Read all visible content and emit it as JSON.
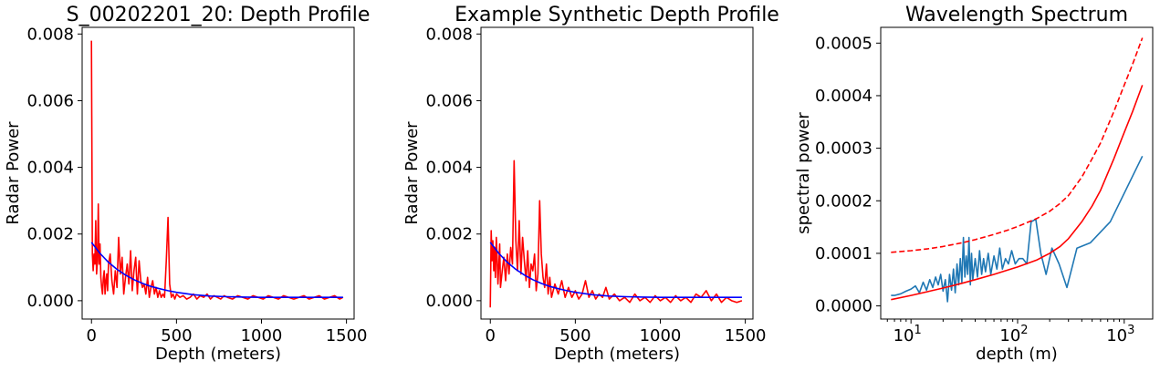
{
  "chart_data": [
    {
      "type": "line",
      "title": "S_00202201_20: Depth Profile",
      "xlabel": "Depth (meters)",
      "ylabel": "Radar Power",
      "xlim": [
        -55,
        1545
      ],
      "ylim": [
        -0.00055,
        0.0082
      ],
      "x_ticks": [
        0,
        500,
        1000,
        1500
      ],
      "x_tick_labels": [
        "0",
        "500",
        "1000",
        "1500"
      ],
      "y_ticks": [
        0,
        0.002,
        0.004,
        0.006,
        0.008
      ],
      "y_tick_labels": [
        "0.000",
        "0.002",
        "0.004",
        "0.006",
        "0.008"
      ],
      "x_scale": "linear",
      "grid": false,
      "series": [
        {
          "color": "#ff0000",
          "style": "solid",
          "x": [
            0,
            5,
            10,
            15,
            20,
            25,
            30,
            35,
            40,
            45,
            50,
            55,
            60,
            65,
            70,
            75,
            80,
            85,
            90,
            95,
            100,
            110,
            120,
            130,
            140,
            150,
            160,
            170,
            180,
            190,
            200,
            210,
            220,
            230,
            240,
            250,
            260,
            270,
            280,
            290,
            300,
            310,
            320,
            330,
            340,
            350,
            360,
            370,
            380,
            390,
            400,
            410,
            420,
            430,
            440,
            450,
            460,
            470,
            480,
            490,
            500,
            520,
            540,
            560,
            580,
            600,
            620,
            640,
            660,
            680,
            700,
            720,
            740,
            760,
            780,
            800,
            830,
            860,
            890,
            920,
            950,
            980,
            1010,
            1040,
            1070,
            1100,
            1130,
            1160,
            1190,
            1220,
            1250,
            1280,
            1310,
            1340,
            1370,
            1400,
            1430,
            1460,
            1480
          ],
          "y": [
            0.0078,
            0.0014,
            0.0009,
            0.0014,
            0.0011,
            0.0024,
            0.0008,
            0.0012,
            0.0029,
            0.0011,
            0.0017,
            0.0007,
            0.0004,
            0.0002,
            0.0007,
            0.0009,
            0.0002,
            0.0006,
            0.0008,
            0.0003,
            0.0011,
            0.0014,
            0.0006,
            0.0002,
            0.0009,
            0.0004,
            0.0019,
            0.0008,
            0.0013,
            0.0002,
            0.0007,
            0.0011,
            0.0005,
            0.0015,
            0.0003,
            0.0009,
            0.0013,
            0.0002,
            0.0012,
            0.0006,
            0.0004,
            0.0005,
            0.0002,
            0.0007,
            0.0001,
            0.0004,
            0.0006,
            0.0002,
            0.0004,
            0.0001,
            0.0003,
            0.0001,
            0.0002,
            0.0001,
            0.0012,
            0.0025,
            0.0005,
            0.0001,
            0.0002,
            5e-05,
            0.0002,
            0.0001,
            0.00015,
            5e-05,
            0.0001,
            0.0002,
            5e-05,
            0.00015,
            0.0001,
            0.0002,
            5e-05,
            0.00015,
            0.0001,
            5e-05,
            0.00015,
            0.0001,
            5e-05,
            0.00015,
            0.0001,
            5e-05,
            0.00015,
            0.0001,
            5e-05,
            0.00015,
            0.0001,
            5e-05,
            0.00015,
            0.0001,
            5e-05,
            0.0001,
            0.00015,
            5e-05,
            0.0001,
            0.00015,
            5e-05,
            0.0001,
            0.00015,
            5e-05,
            0.0001
          ]
        },
        {
          "color": "#0000ff",
          "style": "solid",
          "x": [
            0,
            50,
            100,
            150,
            200,
            250,
            300,
            350,
            400,
            450,
            500,
            600,
            700,
            800,
            900,
            1000,
            1100,
            1200,
            1300,
            1400,
            1480
          ],
          "y": [
            0.00175,
            0.00142,
            0.00115,
            0.00094,
            0.00077,
            0.00063,
            0.00052,
            0.00043,
            0.00036,
            0.0003,
            0.00025,
            0.00018,
            0.00014,
            0.00012,
            0.00011,
            0.0001,
            0.0001,
            0.0001,
            0.0001,
            0.0001,
            0.0001
          ]
        }
      ]
    },
    {
      "type": "line",
      "title": "Example Synthetic Depth Profile",
      "xlabel": "Depth (meters)",
      "ylabel": "Radar Power",
      "xlim": [
        -55,
        1545
      ],
      "ylim": [
        -0.00055,
        0.0082
      ],
      "x_ticks": [
        0,
        500,
        1000,
        1500
      ],
      "x_tick_labels": [
        "0",
        "500",
        "1000",
        "1500"
      ],
      "y_ticks": [
        0,
        0.002,
        0.004,
        0.006,
        0.008
      ],
      "y_tick_labels": [
        "0.000",
        "0.002",
        "0.004",
        "0.006",
        "0.008"
      ],
      "x_scale": "linear",
      "grid": false,
      "series": [
        {
          "color": "#ff0000",
          "style": "solid",
          "x": [
            0,
            5,
            10,
            15,
            20,
            25,
            30,
            35,
            40,
            45,
            50,
            55,
            60,
            70,
            80,
            90,
            100,
            110,
            120,
            130,
            140,
            150,
            160,
            170,
            180,
            190,
            200,
            210,
            220,
            230,
            240,
            250,
            260,
            270,
            280,
            290,
            300,
            310,
            320,
            330,
            340,
            350,
            360,
            380,
            400,
            420,
            440,
            460,
            480,
            500,
            520,
            540,
            560,
            580,
            600,
            620,
            640,
            660,
            680,
            700,
            730,
            760,
            790,
            820,
            850,
            880,
            910,
            940,
            970,
            1000,
            1030,
            1060,
            1090,
            1120,
            1150,
            1180,
            1210,
            1240,
            1270,
            1300,
            1330,
            1360,
            1390,
            1420,
            1450,
            1480
          ],
          "y": [
            -0.0002,
            0.0021,
            0.0012,
            0.0018,
            0.0009,
            0.0016,
            0.0007,
            0.0019,
            0.0013,
            0.0005,
            0.0011,
            0.0017,
            0.0004,
            0.0009,
            0.0013,
            0.0006,
            0.0014,
            0.0008,
            0.0016,
            0.0011,
            0.0042,
            0.0018,
            0.0009,
            0.0024,
            0.0008,
            0.0019,
            0.0012,
            0.0006,
            0.0015,
            0.0004,
            0.0011,
            0.0009,
            0.0014,
            0.0003,
            0.0008,
            0.003,
            0.0014,
            0.0007,
            0.0004,
            0.0011,
            0.0002,
            0.0007,
            0.0001,
            0.0005,
            0.0002,
            0.0006,
            0.0001,
            0.0004,
            0.0001,
            0.0003,
            5e-05,
            0.0002,
            0.0006,
            0.0001,
            0.0003,
            5e-05,
            0.0002,
            0.0001,
            0.0004,
            5e-05,
            0.0002,
            0.0,
            0.0001,
            -5e-05,
            0.0002,
            0.0,
            0.0001,
            -5e-05,
            0.00015,
            0.0,
            0.0001,
            -5e-05,
            0.00015,
            0.0,
            0.0001,
            -5e-05,
            0.0002,
            0.0001,
            0.0003,
            0.0,
            0.0002,
            -5e-05,
            0.0001,
            0.0,
            -5e-05,
            0.0
          ]
        },
        {
          "color": "#0000ff",
          "style": "solid",
          "x": [
            0,
            50,
            100,
            150,
            200,
            250,
            300,
            350,
            400,
            450,
            500,
            600,
            700,
            800,
            900,
            1000,
            1100,
            1200,
            1300,
            1400,
            1480
          ],
          "y": [
            0.00175,
            0.00142,
            0.00115,
            0.00094,
            0.00077,
            0.00063,
            0.00052,
            0.00043,
            0.00036,
            0.0003,
            0.00025,
            0.00018,
            0.00014,
            0.00012,
            0.00011,
            0.0001,
            0.0001,
            0.0001,
            0.0001,
            0.0001,
            0.0001
          ]
        }
      ]
    },
    {
      "type": "line",
      "title": "Wavelength Spectrum",
      "xlabel": "depth (m)",
      "ylabel": "spectral power",
      "xlim": [
        5.2,
        1850
      ],
      "ylim": [
        -2.5e-05,
        0.00053
      ],
      "x_ticks": [
        10,
        100,
        1000
      ],
      "x_tick_labels": [
        "10",
        "10",
        "10"
      ],
      "x_tick_exponents": [
        "1",
        "2",
        "3"
      ],
      "y_ticks": [
        0,
        0.0001,
        0.0002,
        0.0003,
        0.0004,
        0.0005
      ],
      "y_tick_labels": [
        "0.0000",
        "0.0001",
        "0.0002",
        "0.0003",
        "0.0004",
        "0.0005"
      ],
      "x_scale": "log",
      "grid": false,
      "series": [
        {
          "color": "#1f77b4",
          "style": "solid",
          "x": [
            6.5,
            7,
            8,
            9,
            10,
            11,
            12,
            13,
            14,
            15,
            16,
            17,
            18,
            19,
            20,
            21,
            22,
            23,
            24,
            25,
            26,
            27,
            28,
            29,
            30,
            31,
            32,
            33,
            34,
            35,
            36,
            37,
            38,
            40,
            42,
            44,
            46,
            48,
            50,
            53,
            56,
            60,
            64,
            68,
            72,
            77,
            82,
            88,
            95,
            103,
            112,
            122,
            134,
            148,
            165,
            185,
            210,
            245,
            290,
            360,
            480,
            740,
            1480
          ],
          "y": [
            2e-05,
            2e-05,
            2.3e-05,
            2.8e-05,
            3.2e-05,
            3.8e-05,
            2.5e-05,
            4.5e-05,
            3e-05,
            5e-05,
            3.5e-05,
            5.5e-05,
            4e-05,
            6e-05,
            2.8e-05,
            5e-05,
            8e-06,
            6e-05,
            3e-05,
            7e-05,
            2.5e-05,
            8e-05,
            4e-05,
            9e-05,
            4.5e-05,
            0.00013,
            5.5e-05,
            9.5e-05,
            6e-05,
            0.00013,
            4e-05,
            0.0001,
            5e-05,
            9e-05,
            5.5e-05,
            0.000105,
            6e-05,
            9e-05,
            6.5e-05,
            0.0001,
            6e-05,
            9.5e-05,
            7e-05,
            0.00011,
            7e-05,
            9e-05,
            8e-05,
            0.000105,
            8e-05,
            9e-05,
            9e-05,
            8e-05,
            0.00016,
            0.000165,
            0.0001,
            6e-05,
            0.00011,
            8e-05,
            3.5e-05,
            0.00011,
            0.00012,
            0.00016,
            0.000285
          ]
        },
        {
          "color": "#ff0000",
          "style": "solid",
          "x": [
            6.5,
            10,
            15,
            20,
            30,
            40,
            60,
            80,
            100,
            150,
            200,
            250,
            300,
            400,
            500,
            600,
            800,
            1000,
            1200,
            1480
          ],
          "y": [
            1.2e-05,
            2e-05,
            2.8e-05,
            3.4e-05,
            4.3e-05,
            5e-05,
            6e-05,
            6.8e-05,
            7.4e-05,
            8.7e-05,
            0.0001,
            0.000113,
            0.000128,
            0.00016,
            0.00019,
            0.00022,
            0.00028,
            0.00033,
            0.00037,
            0.00042
          ]
        },
        {
          "color": "#ff0000",
          "style": "dashed",
          "x": [
            6.5,
            10,
            15,
            20,
            30,
            40,
            60,
            80,
            100,
            150,
            200,
            250,
            300,
            400,
            500,
            600,
            800,
            1000,
            1200,
            1480
          ],
          "y": [
            0.000102,
            0.000105,
            0.000109,
            0.000113,
            0.00012,
            0.000126,
            0.000136,
            0.000144,
            0.000151,
            0.000166,
            0.00018,
            0.000195,
            0.00021,
            0.000245,
            0.00028,
            0.00031,
            0.00037,
            0.00042,
            0.00046,
            0.00051
          ]
        }
      ]
    }
  ]
}
